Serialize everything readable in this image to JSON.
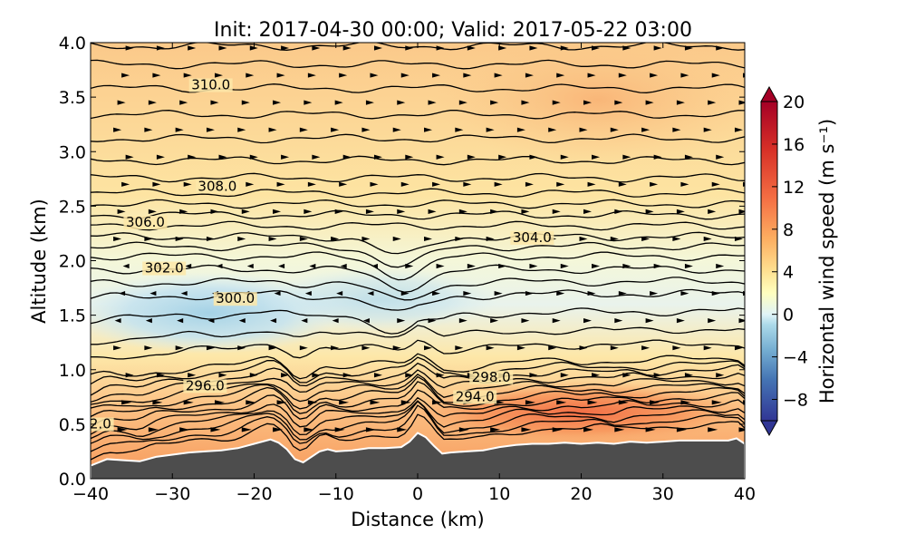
{
  "chart_data": {
    "type": "contour",
    "title": "Init: 2017-04-30 00:00; Valid: 2017-05-22 03:00",
    "xlabel": "Distance (km)",
    "ylabel": "Altitude (km)",
    "xlim": [
      -40,
      40
    ],
    "ylim": [
      0.0,
      4.0
    ],
    "xticks": [
      -40,
      -30,
      -20,
      -10,
      0,
      10,
      20,
      30,
      40
    ],
    "xtick_labels": [
      "−40",
      "−30",
      "−20",
      "−10",
      "0",
      "10",
      "20",
      "30",
      "40"
    ],
    "yticks": [
      0.0,
      0.5,
      1.0,
      1.5,
      2.0,
      2.5,
      3.0,
      3.5,
      4.0
    ],
    "ytick_labels": [
      "0.0",
      "0.5",
      "1.0",
      "1.5",
      "2.0",
      "2.5",
      "3.0",
      "3.5",
      "4.0"
    ],
    "colorbar": {
      "label": "Horizontal wind speed (m s⁻¹)",
      "min": -10,
      "max": 20,
      "ticks": [
        20,
        16,
        12,
        8,
        4,
        0,
        -4,
        -8
      ],
      "tick_labels": [
        "20",
        "16",
        "12",
        "8",
        "4",
        "0",
        "−4",
        "−8"
      ]
    },
    "contour_labels": [
      {
        "text": "310.0",
        "x": -25.3,
        "y": 3.58
      },
      {
        "text": "308.0",
        "x": -24.5,
        "y": 2.65
      },
      {
        "text": "306.0",
        "x": -33.3,
        "y": 2.32
      },
      {
        "text": "304.0",
        "x": 14.0,
        "y": 2.18
      },
      {
        "text": "302.0",
        "x": -31.0,
        "y": 1.9
      },
      {
        "text": "300.0",
        "x": -22.3,
        "y": 1.62
      },
      {
        "text": "298.0",
        "x": 9.0,
        "y": 0.9
      },
      {
        "text": "296.0",
        "x": -26.0,
        "y": 0.82
      },
      {
        "text": "294.0",
        "x": 7.0,
        "y": 0.72
      },
      {
        "text": "2.0",
        "x": -38.8,
        "y": 0.47
      }
    ],
    "terrain": {
      "x": [
        -40,
        -38,
        -36,
        -34,
        -32,
        -30,
        -28,
        -26,
        -24,
        -22,
        -20,
        -18,
        -17,
        -16,
        -15,
        -14,
        -13,
        -12,
        -11,
        -10,
        -8,
        -6,
        -4,
        -2,
        -1,
        0,
        1,
        2,
        3,
        4,
        6,
        8,
        10,
        12,
        14,
        16,
        18,
        20,
        22,
        24,
        26,
        28,
        30,
        32,
        34,
        36,
        38,
        39,
        40
      ],
      "y": [
        0.12,
        0.18,
        0.17,
        0.16,
        0.2,
        0.22,
        0.24,
        0.25,
        0.26,
        0.28,
        0.32,
        0.36,
        0.33,
        0.27,
        0.18,
        0.15,
        0.2,
        0.25,
        0.27,
        0.25,
        0.26,
        0.28,
        0.28,
        0.29,
        0.34,
        0.42,
        0.38,
        0.3,
        0.23,
        0.24,
        0.25,
        0.26,
        0.29,
        0.31,
        0.32,
        0.32,
        0.33,
        0.32,
        0.33,
        0.32,
        0.34,
        0.33,
        0.34,
        0.35,
        0.35,
        0.35,
        0.35,
        0.37,
        0.32
      ]
    }
  }
}
